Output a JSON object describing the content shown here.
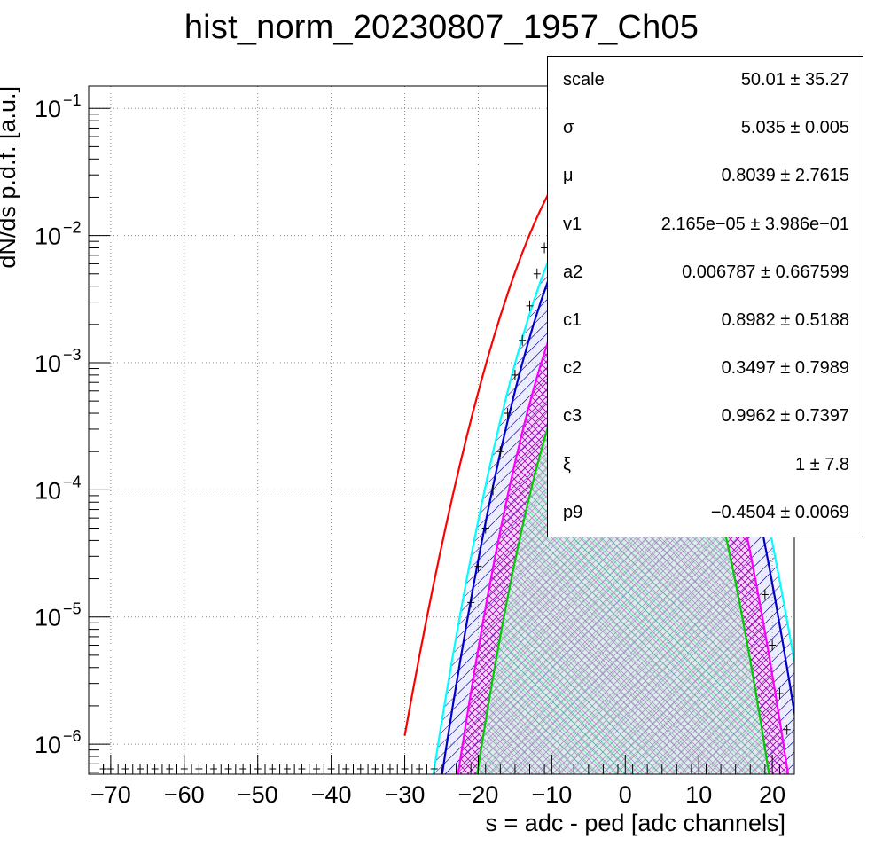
{
  "chart_data": {
    "type": "line",
    "title": "hist_norm_20230807_1957_Ch05",
    "xlabel": "s = adc - ped [adc channels]",
    "ylabel": "dN/ds p.d.f. [a.u.]",
    "xlim": [
      -73,
      23
    ],
    "ylim": [
      5.8e-07,
      0.15
    ],
    "yscale": "log",
    "grid": true,
    "x_ticks": [
      -70,
      -60,
      -50,
      -40,
      -30,
      -20,
      -10,
      0,
      10,
      20
    ],
    "x_tick_labels": [
      "−70",
      "−60",
      "−50",
      "−40",
      "−30",
      "−20",
      "−10",
      "0",
      "10",
      "20"
    ],
    "y_ticks": [
      1e-06,
      1e-05,
      0.0001,
      0.001,
      0.01,
      0.1
    ],
    "y_tick_labels": [
      {
        "base": "10",
        "exp": "−6"
      },
      {
        "base": "10",
        "exp": "−5"
      },
      {
        "base": "10",
        "exp": "−4"
      },
      {
        "base": "10",
        "exp": "−3"
      },
      {
        "base": "10",
        "exp": "−2"
      },
      {
        "base": "10",
        "exp": "−1"
      }
    ],
    "series": [
      {
        "color": "#ff0000",
        "peak": 0.078,
        "mu": -0.3,
        "sigma": 6.3,
        "fill": "none"
      },
      {
        "color": "#00ffff",
        "peak": 0.035,
        "mu": -0.3,
        "sigma": 5.5,
        "fill": "hatch"
      },
      {
        "color": "#0000cc",
        "peak": 0.028,
        "mu": -0.3,
        "sigma": 5.3,
        "fill": "hatch"
      },
      {
        "color": "#ff00ff",
        "peak": 0.0113,
        "mu": -0.3,
        "sigma": 5.05,
        "fill": "crosshatch"
      },
      {
        "color": "#00cc00",
        "peak": 0.003,
        "mu": -0.3,
        "sigma": 4.8,
        "fill": "greenhatch"
      }
    ],
    "data_points": [
      {
        "x": -71,
        "y": 5.5e-07
      },
      {
        "x": -70,
        "y": 5.5e-07
      },
      {
        "x": -68,
        "y": 5.5e-07
      },
      {
        "x": -66,
        "y": 5.5e-07
      },
      {
        "x": -64,
        "y": 5.5e-07
      },
      {
        "x": -62,
        "y": 5.5e-07
      },
      {
        "x": -60,
        "y": 5.5e-07
      },
      {
        "x": -58,
        "y": 5.5e-07
      },
      {
        "x": -56,
        "y": 5.5e-07
      },
      {
        "x": -54,
        "y": 5.5e-07
      },
      {
        "x": -52,
        "y": 5.5e-07
      },
      {
        "x": -50,
        "y": 5.5e-07
      },
      {
        "x": -48,
        "y": 5.5e-07
      },
      {
        "x": -46,
        "y": 5.5e-07
      },
      {
        "x": -44,
        "y": 5.5e-07
      },
      {
        "x": -42,
        "y": 5.5e-07
      },
      {
        "x": -40,
        "y": 5.5e-07
      },
      {
        "x": -38,
        "y": 5.5e-07
      },
      {
        "x": -36,
        "y": 5.5e-07
      },
      {
        "x": -34,
        "y": 5.5e-07
      },
      {
        "x": -32,
        "y": 5.5e-07
      },
      {
        "x": -30,
        "y": 5.5e-07
      },
      {
        "x": -28,
        "y": 5.5e-07
      },
      {
        "x": -26,
        "y": 5.5e-07
      },
      {
        "x": -21,
        "y": 1.3e-05
      },
      {
        "x": -20,
        "y": 2.5e-05
      },
      {
        "x": -19,
        "y": 5e-05
      },
      {
        "x": -18,
        "y": 0.0001
      },
      {
        "x": -17,
        "y": 0.0002
      },
      {
        "x": -16,
        "y": 0.0004
      },
      {
        "x": -15,
        "y": 0.0008
      },
      {
        "x": -14,
        "y": 0.0015
      },
      {
        "x": -13,
        "y": 0.0028
      },
      {
        "x": -12,
        "y": 0.005
      },
      {
        "x": -11,
        "y": 0.008
      },
      {
        "x": 19,
        "y": 1.5e-05
      },
      {
        "x": 20,
        "y": 6e-06
      },
      {
        "x": 21,
        "y": 2.5e-06
      },
      {
        "x": 22,
        "y": 1.3e-06
      }
    ]
  },
  "stats_box": {
    "rows": [
      {
        "name": "scale",
        "value": "50.01 ± 35.27"
      },
      {
        "name": "σ",
        "value": "5.035 ± 0.005"
      },
      {
        "name": "μ",
        "value": "0.8039 ± 2.7615"
      },
      {
        "name": "v1",
        "value": "2.165e−05 ± 3.986e−01"
      },
      {
        "name": "a2",
        "value": "0.006787 ± 0.667599"
      },
      {
        "name": "c1",
        "value": "0.8982 ± 0.5188"
      },
      {
        "name": "c2",
        "value": "0.3497 ± 0.7989"
      },
      {
        "name": "c3",
        "value": "0.9962 ± 0.7397"
      },
      {
        "name": "ξ",
        "value": "1 ± 7.8"
      },
      {
        "name": "p9",
        "value": "−0.4504 ± 0.0069"
      }
    ]
  }
}
